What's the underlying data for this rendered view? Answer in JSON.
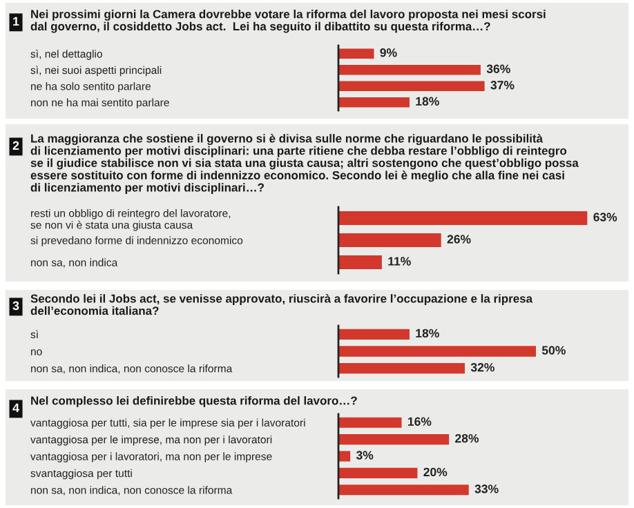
{
  "chart_data": [
    {
      "type": "bar",
      "orientation": "horizontal",
      "annotations": [
        "1"
      ],
      "title": "Nei prossimi giorni la Camera dovrebbe votare la riforma del lavoro proposta nei mesi scorsi\ndal governo, il cosiddetto Jobs act.  Lei ha seguito il dibattito su questa riforma…?",
      "categories": [
        "sì, nel dettaglio",
        "sì, nei suoi aspetti principali",
        "ne ha solo sentito parlare",
        "non ne ha mai sentito parlare"
      ],
      "values": [
        9,
        36,
        37,
        18
      ],
      "value_labels": [
        "9%",
        "36%",
        "37%",
        "18%"
      ],
      "color": "#d2382c"
    },
    {
      "type": "bar",
      "orientation": "horizontal",
      "annotations": [
        "2"
      ],
      "title": "La maggioranza che sostiene il governo si è divisa sulle norme che riguardano le possibilità\ndi licenziamento per motivi disciplinari: una parte ritiene che debba restare l’obbligo di reintegro\nse il giudice stabilisce non vi sia stata una giusta causa; altri sostengono che quest’obbligo possa\nessere sostituito con forme di indennizzo economico. Secondo lei è meglio che alla fine nei casi\ndi licenziamento per motivi disciplinari…?",
      "categories": [
        "resti un obbligo di reintegro del lavoratore,\nse non vi è stata una giusta causa",
        "si prevedano forme di indennizzo economico",
        "non sa, non indica"
      ],
      "values": [
        63,
        26,
        11
      ],
      "value_labels": [
        "63%",
        "26%",
        "11%"
      ],
      "color": "#d2382c"
    },
    {
      "type": "bar",
      "orientation": "horizontal",
      "annotations": [
        "3"
      ],
      "title": "Secondo lei il Jobs act, se venisse approvato, riuscirà a favorire l’occupazione e la ripresa\ndell’economia italiana?",
      "categories": [
        "sì",
        "no",
        "non sa, non indica, non conosce la riforma"
      ],
      "values": [
        18,
        50,
        32
      ],
      "value_labels": [
        "18%",
        "50%",
        "32%"
      ],
      "color": "#d2382c"
    },
    {
      "type": "bar",
      "orientation": "horizontal",
      "annotations": [
        "4"
      ],
      "title": "Nel complesso lei definirebbe questa riforma del lavoro…?",
      "categories": [
        "vantaggiosa per tutti, sia per le imprese sia per i lavoratori",
        "vantaggiosa per le imprese, ma non per i lavoratori",
        "vantaggiosa per i lavoratori, ma non per le imprese",
        "svantaggiosa per tutti",
        "non sa, non indica, non conosce la riforma"
      ],
      "values": [
        16,
        28,
        3,
        20,
        33
      ],
      "value_labels": [
        "16%",
        "28%",
        "3%",
        "20%",
        "33%"
      ],
      "color": "#d2382c"
    }
  ]
}
